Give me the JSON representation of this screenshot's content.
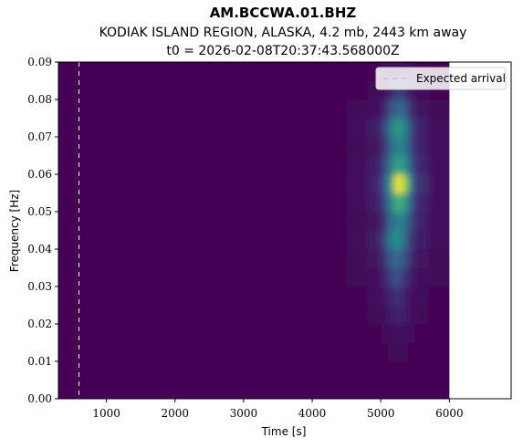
{
  "chart_data": {
    "type": "heatmap",
    "title": "AM.BCCWA.01.BHZ",
    "subtitle": "KODIAK ISLAND REGION, ALASKA, 4.2 mb, 2443 km away",
    "subtitle2": "t0 = 2026-02-08T20:37:43.568000Z",
    "x_label": "Time [s]",
    "y_label": "Frequency [Hz]",
    "xlim": [
      300,
      6900
    ],
    "ylim": [
      0,
      0.09
    ],
    "xticks": [
      1000,
      2000,
      3000,
      4000,
      5000,
      6000
    ],
    "yticks": [
      {
        "value": 0,
        "label": "0.00"
      },
      {
        "value": 0.01,
        "label": "0.01"
      },
      {
        "value": 0.02,
        "label": "0.02"
      },
      {
        "value": 0.03,
        "label": "0.03"
      },
      {
        "value": 0.04,
        "label": "0.04"
      },
      {
        "value": 0.05,
        "label": "0.05"
      },
      {
        "value": 0.06,
        "label": "0.06"
      },
      {
        "value": 0.07,
        "label": "0.07"
      },
      {
        "value": 0.08,
        "label": "0.08"
      },
      {
        "value": 0.09,
        "label": "0.09"
      }
    ],
    "x_edges": [
      300,
      4500,
      4800,
      5000,
      5100,
      5200,
      5300,
      5400,
      5500,
      5700,
      6000
    ],
    "y_edges": [
      0,
      0.005,
      0.01,
      0.015,
      0.02,
      0.025,
      0.03,
      0.035,
      0.04,
      0.045,
      0.05,
      0.055,
      0.06,
      0.065,
      0.07,
      0.075,
      0.08,
      0.085,
      0.09
    ],
    "zlim": [
      0,
      1
    ],
    "colormap": [
      "#440154",
      "#3b528b",
      "#21918c",
      "#5ec962",
      "#fde725"
    ],
    "z_columns": [
      [
        0,
        0,
        0,
        0,
        0,
        0,
        0,
        0,
        0,
        0,
        0,
        0,
        0,
        0,
        0,
        0,
        0,
        0
      ],
      [
        0,
        0,
        0,
        0,
        0.01,
        0.01,
        0.02,
        0.02,
        0.03,
        0.02,
        0.03,
        0.04,
        0.03,
        0.02,
        0.03,
        0.02,
        0.01,
        0
      ],
      [
        0,
        0,
        0,
        0.01,
        0.02,
        0.03,
        0.05,
        0.06,
        0.08,
        0.06,
        0.08,
        0.1,
        0.08,
        0.06,
        0.08,
        0.05,
        0.02,
        0.01
      ],
      [
        0,
        0,
        0.01,
        0.02,
        0.04,
        0.06,
        0.1,
        0.15,
        0.2,
        0.15,
        0.2,
        0.25,
        0.2,
        0.15,
        0.2,
        0.1,
        0.05,
        0.02
      ],
      [
        0,
        0,
        0.02,
        0.04,
        0.08,
        0.12,
        0.2,
        0.3,
        0.45,
        0.35,
        0.45,
        0.55,
        0.4,
        0.35,
        0.4,
        0.25,
        0.1,
        0.03
      ],
      [
        0,
        0,
        0.02,
        0.05,
        0.1,
        0.15,
        0.25,
        0.35,
        0.5,
        0.45,
        0.65,
        1.0,
        0.6,
        0.45,
        0.55,
        0.35,
        0.2,
        0.05
      ],
      [
        0,
        0,
        0.02,
        0.04,
        0.08,
        0.1,
        0.15,
        0.25,
        0.35,
        0.4,
        0.55,
        0.85,
        0.5,
        0.4,
        0.45,
        0.3,
        0.15,
        0.05
      ],
      [
        0,
        0,
        0.01,
        0.02,
        0.04,
        0.05,
        0.08,
        0.12,
        0.15,
        0.2,
        0.25,
        0.35,
        0.25,
        0.2,
        0.2,
        0.12,
        0.06,
        0.02
      ],
      [
        0,
        0,
        0,
        0.01,
        0.02,
        0.03,
        0.04,
        0.06,
        0.08,
        0.1,
        0.12,
        0.15,
        0.12,
        0.1,
        0.1,
        0.06,
        0.03,
        0.01
      ],
      [
        0,
        0,
        0,
        0,
        0.01,
        0.01,
        0.02,
        0.02,
        0.03,
        0.03,
        0.04,
        0.05,
        0.04,
        0.03,
        0.03,
        0.02,
        0.01,
        0
      ]
    ],
    "vlines": [
      {
        "name": "Expected arrival",
        "x": 600,
        "color": "#ffffff"
      }
    ],
    "legend": "upper right"
  }
}
